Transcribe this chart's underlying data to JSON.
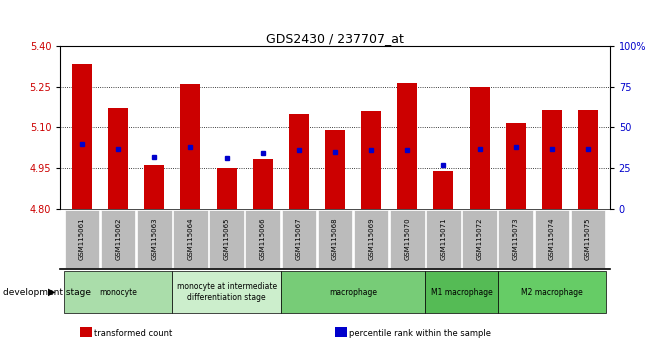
{
  "title": "GDS2430 / 237707_at",
  "samples": [
    "GSM115061",
    "GSM115062",
    "GSM115063",
    "GSM115064",
    "GSM115065",
    "GSM115066",
    "GSM115067",
    "GSM115068",
    "GSM115069",
    "GSM115070",
    "GSM115071",
    "GSM115072",
    "GSM115073",
    "GSM115074",
    "GSM115075"
  ],
  "transformed_count": [
    5.335,
    5.17,
    4.96,
    5.26,
    4.95,
    4.985,
    5.15,
    5.09,
    5.16,
    5.265,
    4.94,
    5.25,
    5.115,
    5.165,
    5.165
  ],
  "percentile_rank": [
    40,
    37,
    32,
    38,
    31,
    34,
    36,
    35,
    36,
    36,
    27,
    37,
    38,
    37,
    37
  ],
  "y_min": 4.8,
  "y_max": 5.4,
  "y_ticks": [
    4.8,
    4.95,
    5.1,
    5.25,
    5.4
  ],
  "right_y_ticks": [
    0,
    25,
    50,
    75,
    100
  ],
  "bar_color": "#cc0000",
  "percentile_color": "#0000cc",
  "bg_color": "#ffffff",
  "tick_label_bg": "#bbbbbb",
  "development_stages": [
    {
      "label": "monocyte",
      "start": 0,
      "end": 3,
      "color": "#aaddaa"
    },
    {
      "label": "monocyte at intermediate\ndifferentiation stage",
      "start": 3,
      "end": 6,
      "color": "#cceecc"
    },
    {
      "label": "macrophage",
      "start": 6,
      "end": 10,
      "color": "#77cc77"
    },
    {
      "label": "M1 macrophage",
      "start": 10,
      "end": 12,
      "color": "#55bb55"
    },
    {
      "label": "M2 macrophage",
      "start": 12,
      "end": 15,
      "color": "#66cc66"
    }
  ],
  "legend_items": [
    {
      "label": "transformed count",
      "color": "#cc0000"
    },
    {
      "label": "percentile rank within the sample",
      "color": "#0000cc"
    }
  ],
  "dev_stage_label": "development stage",
  "grid_lines": [
    4.95,
    5.1,
    5.25
  ]
}
